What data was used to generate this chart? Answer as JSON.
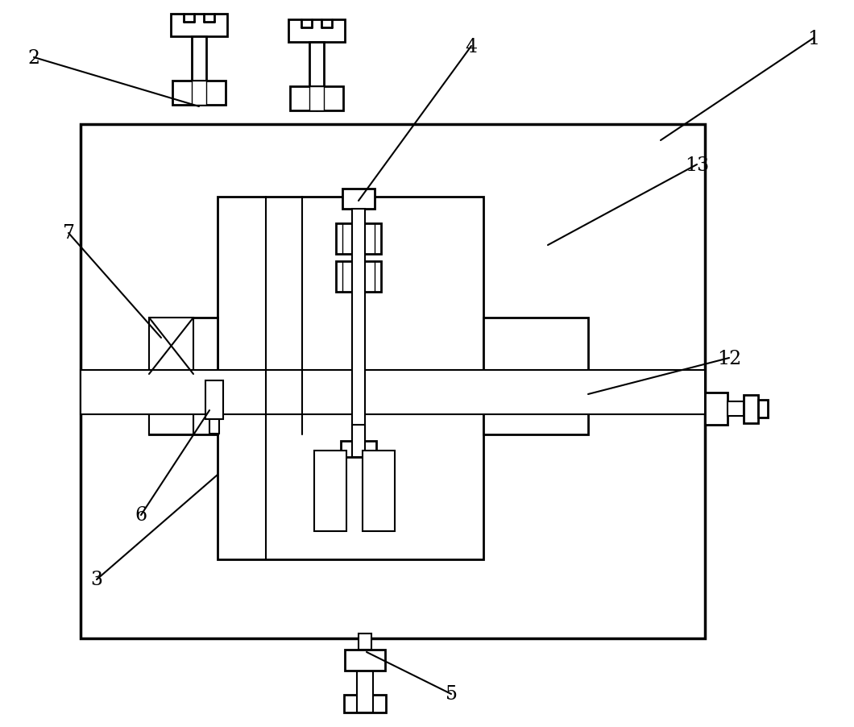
{
  "background_color": "#ffffff",
  "line_color": "#000000",
  "lw": 2.0,
  "fig_width": 10.6,
  "fig_height": 9.03
}
